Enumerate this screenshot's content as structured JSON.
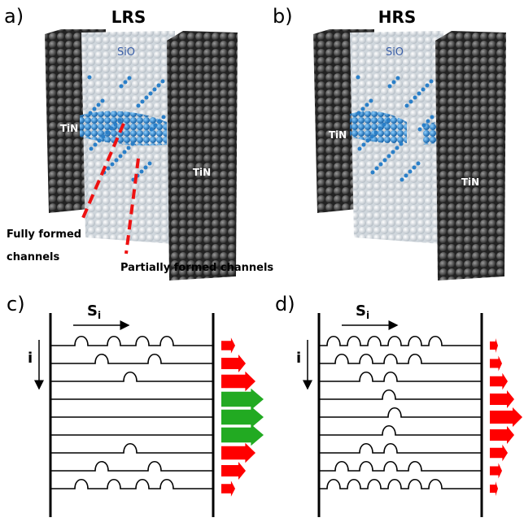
{
  "panels": [
    {
      "label": "a)",
      "title": "LRS",
      "oxide": "SiO",
      "electrodes": [
        "TiN",
        "TiN"
      ]
    },
    {
      "label": "b)",
      "title": "HRS",
      "oxide": "SiO",
      "electrodes": [
        "TiN",
        "TiN"
      ]
    }
  ],
  "annotations": {
    "fully_formed": [
      "Fully formed",
      "channels"
    ],
    "partially_formed": "Partially formed channels"
  },
  "schematics": [
    {
      "label": "c)",
      "direction_symbol": "S",
      "direction_subscript": "i",
      "index_symbol": "i"
    },
    {
      "label": "d)",
      "direction_symbol": "S",
      "direction_subscript": "i",
      "index_symbol": "i"
    }
  ]
}
